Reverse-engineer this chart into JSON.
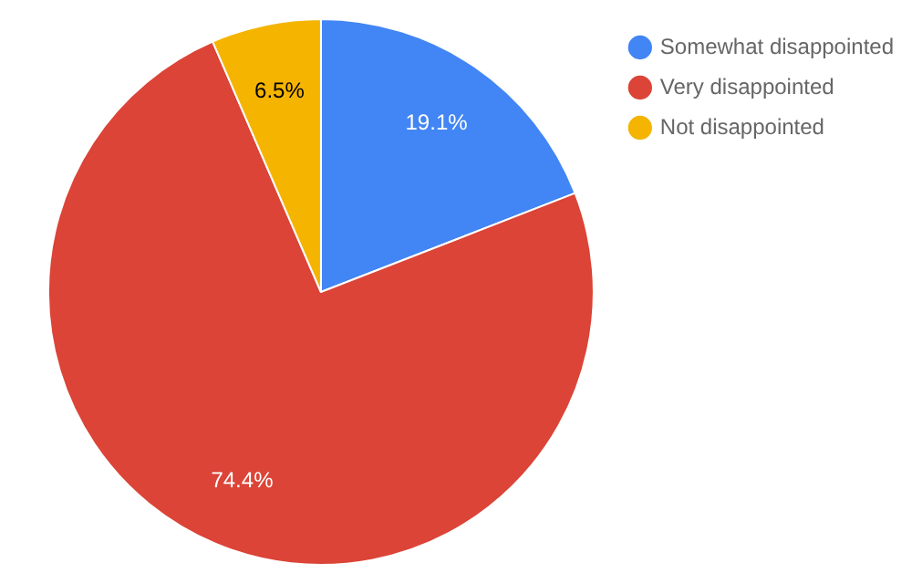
{
  "chart_data": {
    "type": "pie",
    "categories": [
      "Somewhat disappointed",
      "Very disappointed",
      "Not disappointed"
    ],
    "values": [
      19.1,
      74.4,
      6.5
    ],
    "colors": [
      "#4285f4",
      "#db4437",
      "#f4b400"
    ],
    "value_labels": [
      "19.1%",
      "74.4%",
      "6.5%"
    ],
    "legend": "top right"
  }
}
